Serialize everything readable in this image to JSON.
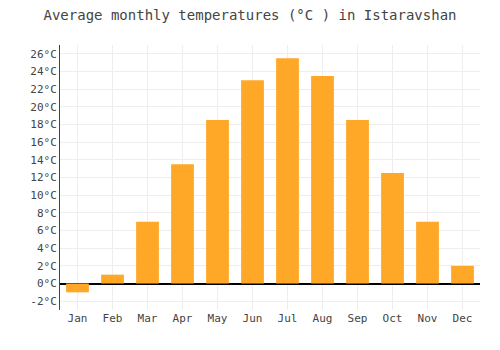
{
  "chart_data": {
    "type": "bar",
    "title": "Average monthly temperatures (°C ) in Istaravshan",
    "categories": [
      "Jan",
      "Feb",
      "Mar",
      "Apr",
      "May",
      "Jun",
      "Jul",
      "Aug",
      "Sep",
      "Oct",
      "Nov",
      "Dec"
    ],
    "values": [
      -1.0,
      1.0,
      7.0,
      13.5,
      18.5,
      23.0,
      25.5,
      23.5,
      18.5,
      12.5,
      7.0,
      2.0
    ],
    "color": "#FFA726",
    "ylim": [
      -3,
      27
    ],
    "yticks": [
      {
        "value": -2,
        "label": "-2°C"
      },
      {
        "value": 0,
        "label": "0°C"
      },
      {
        "value": 2,
        "label": "2°C"
      },
      {
        "value": 4,
        "label": "4°C"
      },
      {
        "value": 6,
        "label": "6°C"
      },
      {
        "value": 8,
        "label": "8°C"
      },
      {
        "value": 10,
        "label": "10°C"
      },
      {
        "value": 12,
        "label": "12°C"
      },
      {
        "value": 14,
        "label": "14°C"
      },
      {
        "value": 16,
        "label": "16°C"
      },
      {
        "value": 18,
        "label": "18°C"
      },
      {
        "value": 20,
        "label": "20°C"
      },
      {
        "value": 22,
        "label": "22°C"
      },
      {
        "value": 24,
        "label": "24°C"
      },
      {
        "value": 26,
        "label": "26°C"
      }
    ],
    "grid": true
  }
}
